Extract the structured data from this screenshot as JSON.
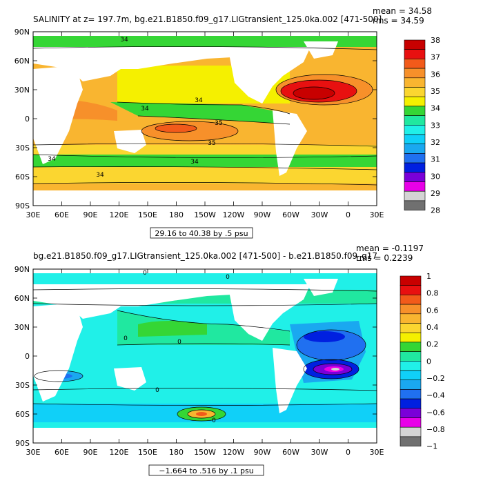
{
  "chart_data": [
    {
      "type": "heatmap",
      "title": "SALINITY at z= 197.7m, bg.e21.B1850.f09_g17.LIGtransient_125.0ka.002 [471-500]",
      "stats": [
        "mean = 34.58",
        "rms = 34.59"
      ],
      "x_ticks": [
        "30E",
        "60E",
        "90E",
        "120E",
        "150E",
        "180",
        "150W",
        "120W",
        "90W",
        "60W",
        "30W",
        "0",
        "30E"
      ],
      "y_ticks": [
        "90N",
        "60N",
        "30N",
        "0",
        "30S",
        "60S",
        "90S"
      ],
      "xlim": [
        30,
        390
      ],
      "ylim": [
        -90,
        90
      ],
      "range_label": "29.16 to 40.38 by .5 psu",
      "contour_labels": [
        "34",
        "34",
        "34",
        "35",
        "35",
        "34",
        "34",
        "34"
      ],
      "colorbar": {
        "labels": [
          "38",
          "37",
          "36",
          "35",
          "34",
          "33",
          "32",
          "31",
          "30",
          "29",
          "28"
        ],
        "colors": [
          "#c80000",
          "#e81010",
          "#f25a1a",
          "#f7902a",
          "#f9b530",
          "#fbd630",
          "#f5f000",
          "#35d635",
          "#20e8a0",
          "#20f0e8",
          "#10d0f8",
          "#1aa8f0",
          "#2070f0",
          "#0020e0",
          "#7a00d8",
          "#e800e8",
          "#d4d4d4",
          "#707070"
        ]
      }
    },
    {
      "type": "heatmap",
      "title": "bg.e21.B1850.f09_g17.LIGtransient_125.0ka.002 [471-500] - b.e21.B1850.f09_g17",
      "stats": [
        "mean = -0.1197",
        "rms = 0.2239"
      ],
      "x_ticks": [
        "30E",
        "60E",
        "90E",
        "120E",
        "150E",
        "180",
        "150W",
        "120W",
        "90W",
        "60W",
        "30W",
        "0",
        "30E"
      ],
      "y_ticks": [
        "90N",
        "60N",
        "30N",
        "0",
        "30S",
        "60S",
        "90S"
      ],
      "xlim": [
        30,
        390
      ],
      "ylim": [
        -90,
        90
      ],
      "range_label": "−1.664 to .516 by .1 psu",
      "contour_labels": [
        "0",
        "0",
        "0",
        "0",
        "0",
        "0"
      ],
      "colorbar": {
        "labels": [
          "1",
          "0.8",
          "0.6",
          "0.4",
          "0.2",
          "0",
          "−0.2",
          "−0.4",
          "−0.6",
          "−0.8",
          "−1"
        ],
        "colors": [
          "#c80000",
          "#e81010",
          "#f25a1a",
          "#f7902a",
          "#f9b530",
          "#fbd630",
          "#f5f000",
          "#35d635",
          "#20e8a0",
          "#20f0e8",
          "#10d0f8",
          "#1aa8f0",
          "#2070f0",
          "#0020e0",
          "#7a00d8",
          "#e800e8",
          "#d4d4d4",
          "#707070"
        ]
      }
    }
  ]
}
